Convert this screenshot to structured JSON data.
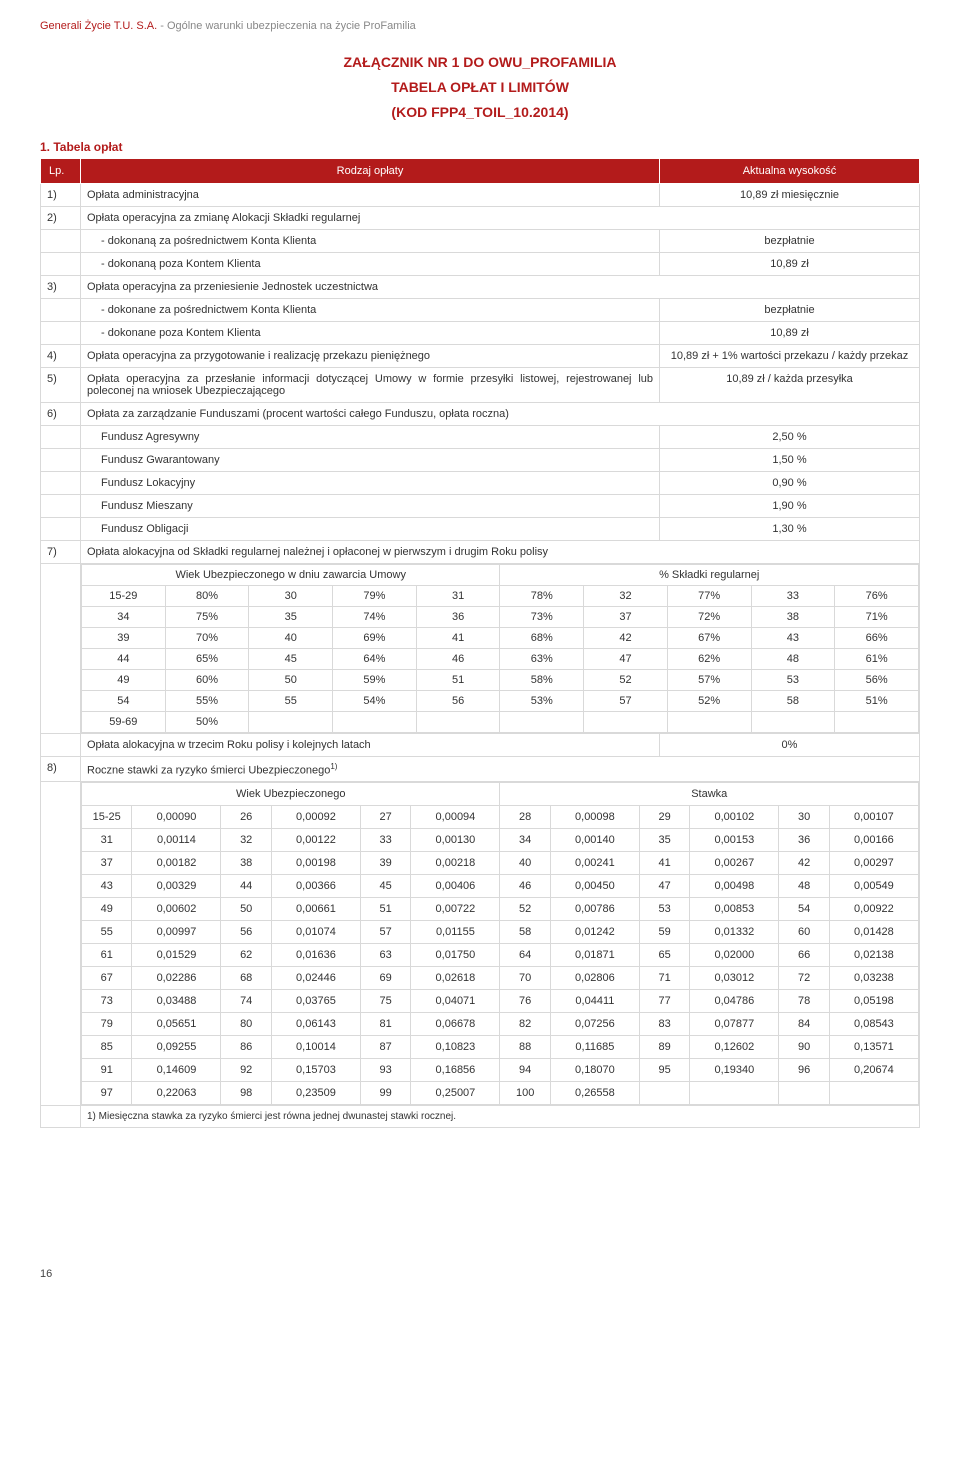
{
  "header": {
    "company": "Generali Życie T.U. S.A.",
    "subtitle": " - Ogólne warunki ubezpieczenia na życie ProFamilia"
  },
  "title": {
    "line1": "ZAŁĄCZNIK NR 1 DO OWU_PROFAMILIA",
    "line2": "TABELA OPŁAT I LIMITÓW",
    "line3": "(KOD FPP4_TOIL_10.2014)"
  },
  "section1_title": "1.   Tabela opłat",
  "columns": {
    "lp": "Lp.",
    "rodzaj": "Rodzaj opłaty",
    "aktualna": "Aktualna wysokość"
  },
  "rows": {
    "r1": {
      "n": "1)",
      "d": "Opłata administracyjna",
      "v": "10,89 zł miesięcznie"
    },
    "r2": {
      "n": "2)",
      "d": "Opłata operacyjna za zmianę Alokacji Składki regularnej"
    },
    "r2a": {
      "d": "- dokonaną za pośrednictwem Konta Klienta",
      "v": "bezpłatnie"
    },
    "r2b": {
      "d": "- dokonaną poza Kontem Klienta",
      "v": "10,89 zł"
    },
    "r3": {
      "n": "3)",
      "d": "Opłata operacyjna za przeniesienie Jednostek uczestnictwa"
    },
    "r3a": {
      "d": "- dokonane za pośrednictwem Konta Klienta",
      "v": "bezpłatnie"
    },
    "r3b": {
      "d": "- dokonane poza Kontem Klienta",
      "v": "10,89 zł"
    },
    "r4": {
      "n": "4)",
      "d": "Opłata operacyjna za przygotowanie i realizację przekazu pieniężnego",
      "v": "10,89 zł + 1% wartości przekazu / każdy przekaz"
    },
    "r5": {
      "n": "5)",
      "d": "Opłata operacyjna za przesłanie informacji dotyczącej Umowy w formie przesyłki listowej, rejestrowanej lub poleconej na wniosek Ubezpieczającego",
      "v": "10,89 zł / każda przesyłka"
    },
    "r6": {
      "n": "6)",
      "d": "Opłata za zarządzanie Funduszami (procent wartości całego Funduszu, opłata roczna)"
    },
    "f1": {
      "d": "Fundusz Agresywny",
      "v": "2,50 %"
    },
    "f2": {
      "d": "Fundusz Gwarantowany",
      "v": "1,50 %"
    },
    "f3": {
      "d": "Fundusz Lokacyjny",
      "v": "0,90 %"
    },
    "f4": {
      "d": "Fundusz Mieszany",
      "v": "1,90 %"
    },
    "f5": {
      "d": "Fundusz Obligacji",
      "v": "1,30 %"
    },
    "r7": {
      "n": "7)",
      "d": "Opłata alokacyjna od Składki regularnej należnej i opłaconej w pierwszym i drugim Roku polisy"
    },
    "age_hdr_left": "Wiek Ubezpieczonego w dniu zawarcia Umowy",
    "age_hdr_right": "% Składki regularnej",
    "alloc3": {
      "d": "Opłata alokacyjna w trzecim Roku polisy i kolejnych latach",
      "v": "0%"
    },
    "r8": {
      "n": "8)",
      "d": "Roczne stawki za ryzyko śmierci Ubezpieczonego",
      "sup": "1)"
    },
    "risk_hdr_left": "Wiek Ubezpieczonego",
    "risk_hdr_right": "Stawka",
    "footnote": "1) Miesięczna stawka za ryzyko śmierci jest równa jednej dwunastej stawki rocznej."
  },
  "age_table": [
    [
      "15-29",
      "80%",
      "30",
      "79%",
      "31",
      "78%",
      "32",
      "77%",
      "33",
      "76%"
    ],
    [
      "34",
      "75%",
      "35",
      "74%",
      "36",
      "73%",
      "37",
      "72%",
      "38",
      "71%"
    ],
    [
      "39",
      "70%",
      "40",
      "69%",
      "41",
      "68%",
      "42",
      "67%",
      "43",
      "66%"
    ],
    [
      "44",
      "65%",
      "45",
      "64%",
      "46",
      "63%",
      "47",
      "62%",
      "48",
      "61%"
    ],
    [
      "49",
      "60%",
      "50",
      "59%",
      "51",
      "58%",
      "52",
      "57%",
      "53",
      "56%"
    ],
    [
      "54",
      "55%",
      "55",
      "54%",
      "56",
      "53%",
      "57",
      "52%",
      "58",
      "51%"
    ],
    [
      "59-69",
      "50%",
      "",
      "",
      "",
      "",
      "",
      "",
      "",
      ""
    ]
  ],
  "risk_table": [
    [
      "15-25",
      "0,00090",
      "26",
      "0,00092",
      "27",
      "0,00094",
      "28",
      "0,00098",
      "29",
      "0,00102",
      "30",
      "0,00107"
    ],
    [
      "31",
      "0,00114",
      "32",
      "0,00122",
      "33",
      "0,00130",
      "34",
      "0,00140",
      "35",
      "0,00153",
      "36",
      "0,00166"
    ],
    [
      "37",
      "0,00182",
      "38",
      "0,00198",
      "39",
      "0,00218",
      "40",
      "0,00241",
      "41",
      "0,00267",
      "42",
      "0,00297"
    ],
    [
      "43",
      "0,00329",
      "44",
      "0,00366",
      "45",
      "0,00406",
      "46",
      "0,00450",
      "47",
      "0,00498",
      "48",
      "0,00549"
    ],
    [
      "49",
      "0,00602",
      "50",
      "0,00661",
      "51",
      "0,00722",
      "52",
      "0,00786",
      "53",
      "0,00853",
      "54",
      "0,00922"
    ],
    [
      "55",
      "0,00997",
      "56",
      "0,01074",
      "57",
      "0,01155",
      "58",
      "0,01242",
      "59",
      "0,01332",
      "60",
      "0,01428"
    ],
    [
      "61",
      "0,01529",
      "62",
      "0,01636",
      "63",
      "0,01750",
      "64",
      "0,01871",
      "65",
      "0,02000",
      "66",
      "0,02138"
    ],
    [
      "67",
      "0,02286",
      "68",
      "0,02446",
      "69",
      "0,02618",
      "70",
      "0,02806",
      "71",
      "0,03012",
      "72",
      "0,03238"
    ],
    [
      "73",
      "0,03488",
      "74",
      "0,03765",
      "75",
      "0,04071",
      "76",
      "0,04411",
      "77",
      "0,04786",
      "78",
      "0,05198"
    ],
    [
      "79",
      "0,05651",
      "80",
      "0,06143",
      "81",
      "0,06678",
      "82",
      "0,07256",
      "83",
      "0,07877",
      "84",
      "0,08543"
    ],
    [
      "85",
      "0,09255",
      "86",
      "0,10014",
      "87",
      "0,10823",
      "88",
      "0,11685",
      "89",
      "0,12602",
      "90",
      "0,13571"
    ],
    [
      "91",
      "0,14609",
      "92",
      "0,15703",
      "93",
      "0,16856",
      "94",
      "0,18070",
      "95",
      "0,19340",
      "96",
      "0,20674"
    ],
    [
      "97",
      "0,22063",
      "98",
      "0,23509",
      "99",
      "0,25007",
      "100",
      "0,26558",
      "",
      "",
      "",
      ""
    ]
  ],
  "pagenum": "16",
  "colors": {
    "brand": "#b31b1b",
    "border": "#d9d9d9",
    "muted": "#888"
  }
}
